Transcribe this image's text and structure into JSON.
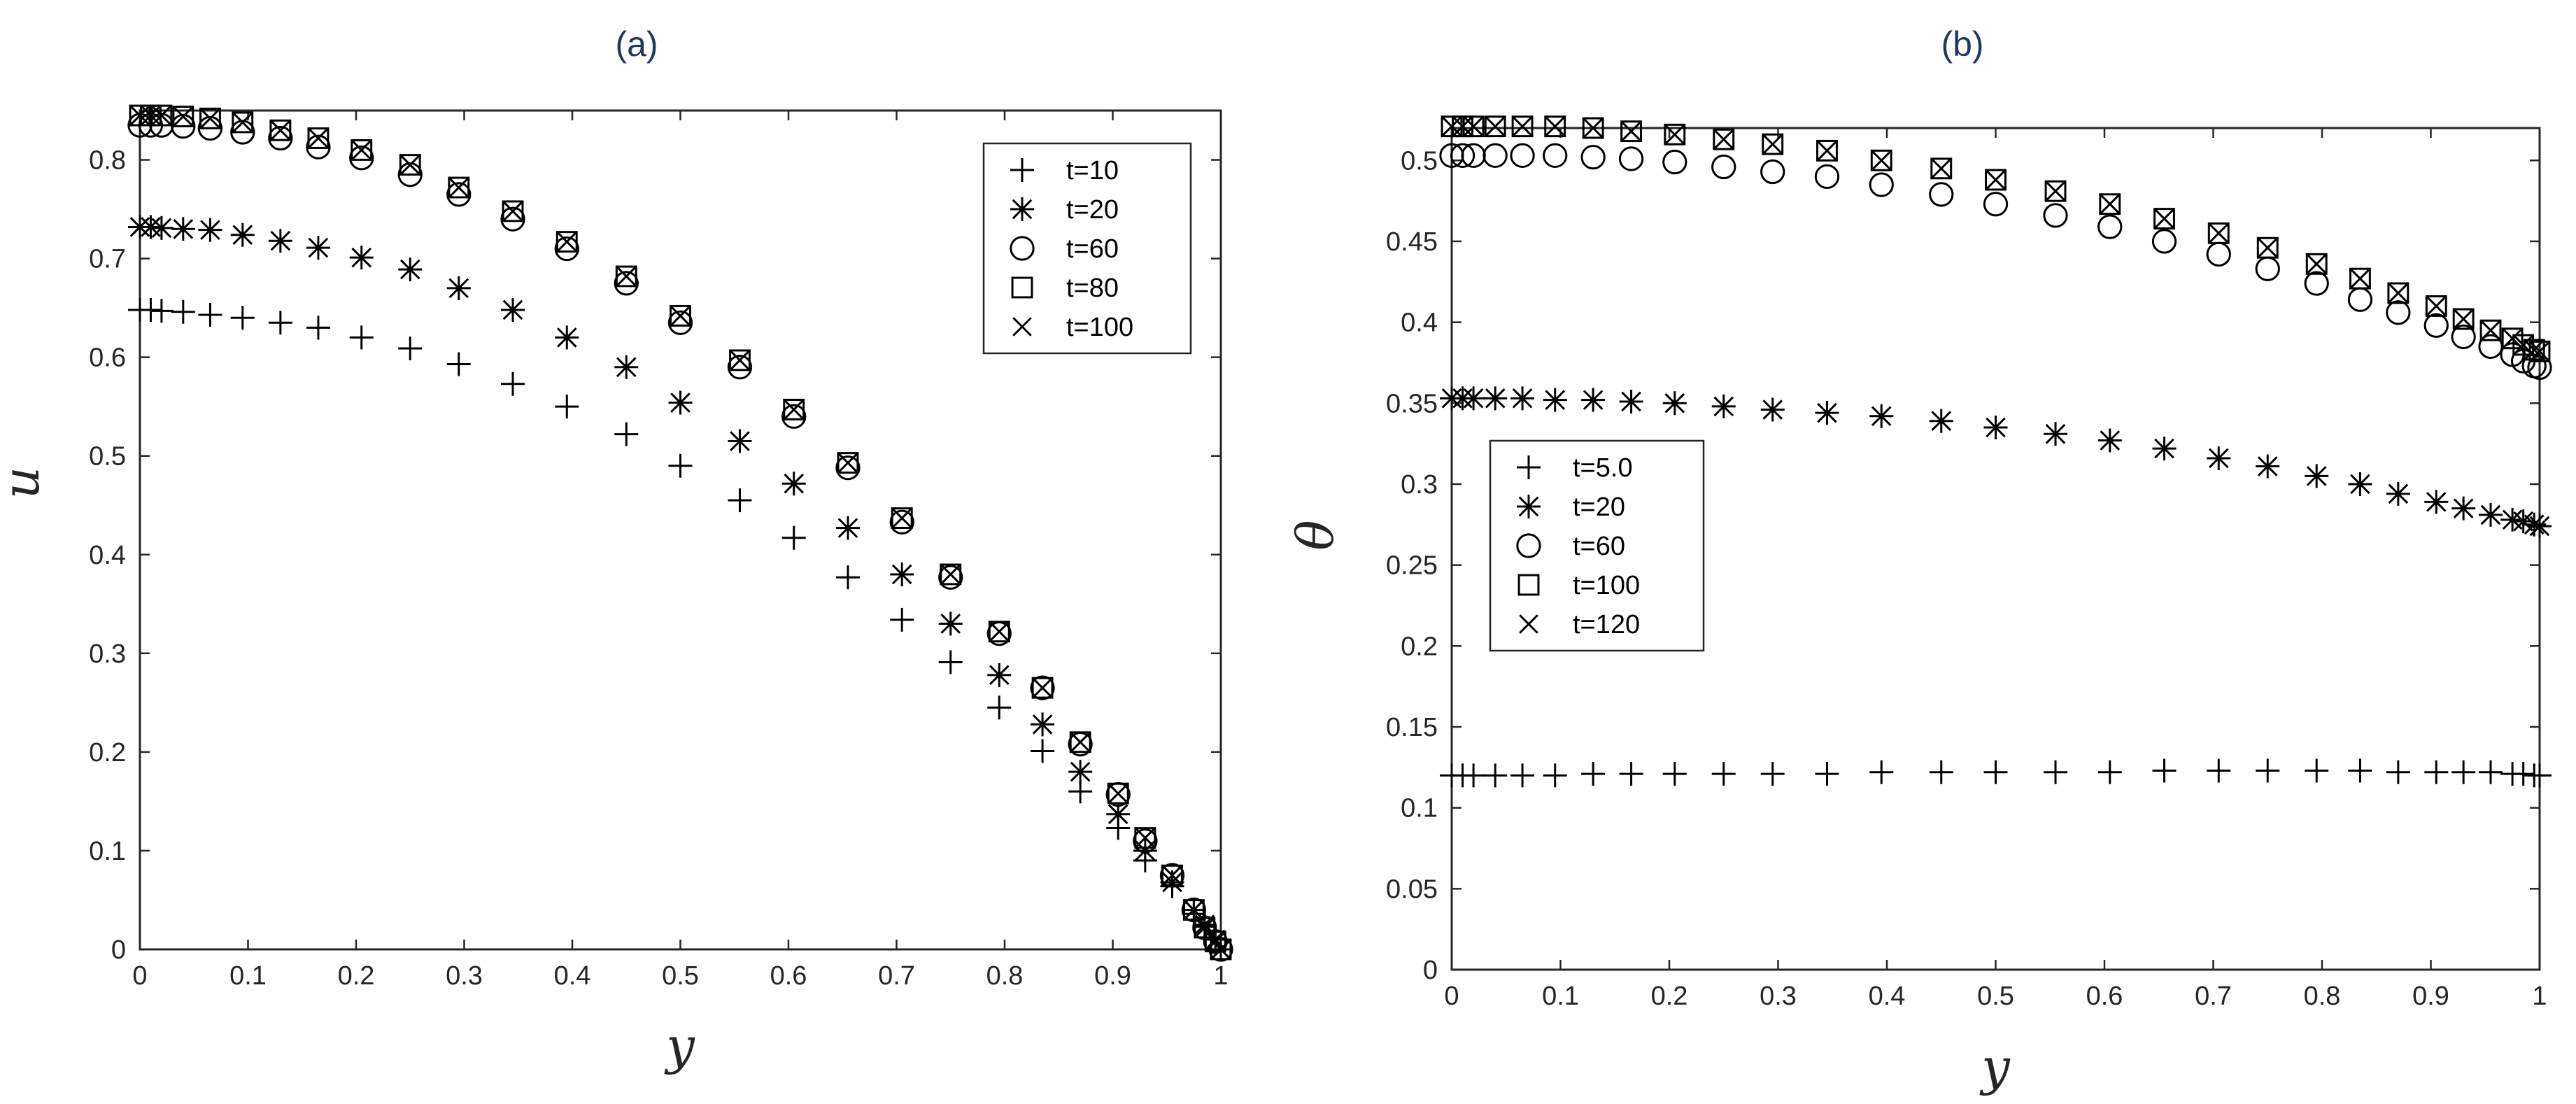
{
  "chart_data": [
    {
      "type": "scatter",
      "title": "(a)",
      "xlabel": "y",
      "ylabel": "u",
      "xlim": [
        0,
        1
      ],
      "ylim": [
        0,
        0.85
      ],
      "xticks": [
        "0",
        "0.1",
        "0.2",
        "0.3",
        "0.4",
        "0.5",
        "0.6",
        "0.7",
        "0.8",
        "0.9",
        "1"
      ],
      "yticks": [
        "0",
        "0.1",
        "0.2",
        "0.3",
        "0.4",
        "0.5",
        "0.6",
        "0.7",
        "0.8"
      ],
      "legend_position": "top-right",
      "grid": false,
      "x": [
        0,
        0.01,
        0.02,
        0.04,
        0.065,
        0.095,
        0.13,
        0.165,
        0.205,
        0.25,
        0.295,
        0.345,
        0.395,
        0.45,
        0.5,
        0.555,
        0.605,
        0.655,
        0.705,
        0.75,
        0.795,
        0.835,
        0.87,
        0.905,
        0.93,
        0.955,
        0.975,
        0.985,
        0.995,
        1
      ],
      "series": [
        {
          "name": "t=10",
          "marker": "plus",
          "values": [
            0.648,
            0.648,
            0.647,
            0.646,
            0.643,
            0.64,
            0.635,
            0.63,
            0.62,
            0.609,
            0.593,
            0.573,
            0.55,
            0.522,
            0.49,
            0.455,
            0.417,
            0.377,
            0.334,
            0.291,
            0.245,
            0.201,
            0.16,
            0.123,
            0.09,
            0.064,
            0.036,
            0.023,
            0.01,
            0
          ]
        },
        {
          "name": "t=20",
          "marker": "asterisk",
          "values": [
            0.732,
            0.732,
            0.731,
            0.73,
            0.729,
            0.724,
            0.718,
            0.711,
            0.701,
            0.689,
            0.67,
            0.648,
            0.62,
            0.59,
            0.554,
            0.515,
            0.472,
            0.427,
            0.38,
            0.33,
            0.278,
            0.228,
            0.18,
            0.137,
            0.1,
            0.068,
            0.04,
            0.025,
            0.01,
            0
          ]
        },
        {
          "name": "t=60",
          "marker": "circle",
          "values": [
            0.835,
            0.835,
            0.835,
            0.834,
            0.832,
            0.828,
            0.822,
            0.813,
            0.802,
            0.785,
            0.765,
            0.74,
            0.71,
            0.675,
            0.635,
            0.59,
            0.54,
            0.488,
            0.433,
            0.377,
            0.32,
            0.265,
            0.208,
            0.157,
            0.11,
            0.075,
            0.04,
            0.022,
            0.008,
            0
          ]
        },
        {
          "name": "t=80",
          "marker": "square",
          "values": [
            0.845,
            0.845,
            0.845,
            0.844,
            0.842,
            0.838,
            0.83,
            0.822,
            0.81,
            0.795,
            0.772,
            0.748,
            0.717,
            0.682,
            0.642,
            0.597,
            0.547,
            0.493,
            0.437,
            0.38,
            0.322,
            0.265,
            0.21,
            0.158,
            0.113,
            0.075,
            0.04,
            0.022,
            0.008,
            0
          ]
        },
        {
          "name": "t=100",
          "marker": "x",
          "values": [
            0.845,
            0.845,
            0.845,
            0.844,
            0.842,
            0.838,
            0.83,
            0.822,
            0.81,
            0.795,
            0.772,
            0.748,
            0.717,
            0.682,
            0.642,
            0.597,
            0.547,
            0.493,
            0.437,
            0.38,
            0.322,
            0.265,
            0.21,
            0.158,
            0.113,
            0.075,
            0.04,
            0.022,
            0.008,
            0
          ]
        }
      ]
    },
    {
      "type": "scatter",
      "title": "(b)",
      "xlabel": "y",
      "ylabel": "θ",
      "xlim": [
        0,
        1
      ],
      "ylim": [
        0,
        0.52
      ],
      "xticks": [
        "0",
        "0.1",
        "0.2",
        "0.3",
        "0.4",
        "0.5",
        "0.6",
        "0.7",
        "0.8",
        "0.9",
        "1"
      ],
      "yticks": [
        "0",
        "0.05",
        "0.1",
        "0.15",
        "0.2",
        "0.25",
        "0.3",
        "0.35",
        "0.4",
        "0.45",
        "0.5"
      ],
      "legend_position": "middle-left",
      "grid": false,
      "x": [
        0,
        0.01,
        0.02,
        0.04,
        0.065,
        0.095,
        0.13,
        0.165,
        0.205,
        0.25,
        0.295,
        0.345,
        0.395,
        0.45,
        0.5,
        0.555,
        0.605,
        0.655,
        0.705,
        0.75,
        0.795,
        0.835,
        0.87,
        0.905,
        0.93,
        0.955,
        0.975,
        0.985,
        0.995,
        1
      ],
      "series": [
        {
          "name": "t=5.0",
          "marker": "plus",
          "values": [
            0.12,
            0.12,
            0.12,
            0.12,
            0.12,
            0.12,
            0.121,
            0.121,
            0.121,
            0.121,
            0.121,
            0.121,
            0.122,
            0.122,
            0.122,
            0.122,
            0.122,
            0.123,
            0.123,
            0.123,
            0.123,
            0.123,
            0.122,
            0.122,
            0.122,
            0.122,
            0.121,
            0.121,
            0.12,
            0.12
          ]
        },
        {
          "name": "t=20",
          "marker": "asterisk",
          "values": [
            0.353,
            0.353,
            0.353,
            0.353,
            0.353,
            0.352,
            0.352,
            0.351,
            0.35,
            0.348,
            0.346,
            0.344,
            0.342,
            0.339,
            0.335,
            0.331,
            0.327,
            0.322,
            0.316,
            0.311,
            0.305,
            0.3,
            0.294,
            0.289,
            0.285,
            0.281,
            0.278,
            0.277,
            0.275,
            0.274
          ]
        },
        {
          "name": "t=60",
          "marker": "circle",
          "values": [
            0.503,
            0.503,
            0.503,
            0.503,
            0.503,
            0.503,
            0.502,
            0.501,
            0.499,
            0.496,
            0.493,
            0.49,
            0.485,
            0.479,
            0.473,
            0.466,
            0.459,
            0.45,
            0.442,
            0.433,
            0.424,
            0.414,
            0.406,
            0.398,
            0.391,
            0.385,
            0.38,
            0.376,
            0.373,
            0.372
          ]
        },
        {
          "name": "t=100",
          "marker": "square",
          "values": [
            0.521,
            0.521,
            0.521,
            0.521,
            0.521,
            0.521,
            0.52,
            0.518,
            0.516,
            0.513,
            0.51,
            0.506,
            0.5,
            0.495,
            0.488,
            0.481,
            0.473,
            0.464,
            0.455,
            0.446,
            0.436,
            0.427,
            0.418,
            0.41,
            0.402,
            0.395,
            0.39,
            0.386,
            0.383,
            0.382
          ]
        },
        {
          "name": "t=120",
          "marker": "x",
          "values": [
            0.521,
            0.521,
            0.521,
            0.521,
            0.521,
            0.521,
            0.52,
            0.518,
            0.516,
            0.513,
            0.51,
            0.506,
            0.5,
            0.495,
            0.488,
            0.481,
            0.473,
            0.464,
            0.455,
            0.446,
            0.436,
            0.427,
            0.418,
            0.41,
            0.402,
            0.395,
            0.39,
            0.386,
            0.383,
            0.382
          ]
        }
      ]
    }
  ]
}
